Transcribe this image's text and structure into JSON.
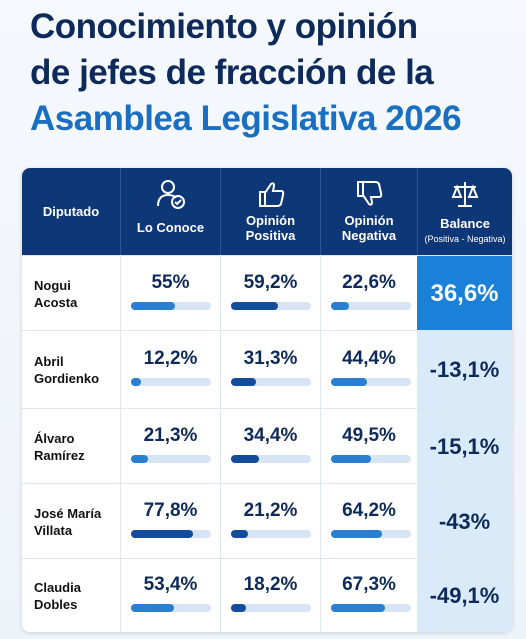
{
  "header": {
    "title": [
      "Conocimiento y opinión",
      "de jefes de fracción de la",
      "Asamblea Legislativa 2026"
    ]
  },
  "table": {
    "columns": [
      "Diputado",
      "Lo Conoce",
      "Opinión Positiva",
      "Opinión Negativa",
      "Balance"
    ],
    "balance_note": "(Positiva - Negativa)",
    "rows": [
      {
        "name": [
          "Nogui",
          "Acosta"
        ],
        "cells": [
          {
            "value": 55,
            "label": "55%"
          },
          {
            "value": 59.2,
            "label": "59,2%"
          },
          {
            "value": 22.6,
            "label": "22,6%"
          }
        ],
        "balance": "36,6%"
      },
      {
        "name": [
          "Abril",
          "Gordienko"
        ],
        "cells": [
          {
            "value": 12.2,
            "label": "12,2%"
          },
          {
            "value": 31.3,
            "label": "31,3%"
          },
          {
            "value": 44.4,
            "label": "44,4%"
          }
        ],
        "balance": "-13,1%"
      },
      {
        "name": [
          "Álvaro",
          "Ramírez"
        ],
        "cells": [
          {
            "value": 21.3,
            "label": "21,3%"
          },
          {
            "value": 34.4,
            "label": "34,4%"
          },
          {
            "value": 49.5,
            "label": "49,5%"
          }
        ],
        "balance": "-15,1%"
      },
      {
        "name": [
          "José María",
          "Villata"
        ],
        "cells": [
          {
            "value": 77.8,
            "label": "77,8%"
          },
          {
            "value": 21.2,
            "label": "21,2%"
          },
          {
            "value": 64.2,
            "label": "64,2%"
          }
        ],
        "balance": "-43%"
      },
      {
        "name": [
          "Claudia",
          "Dobles"
        ],
        "cells": [
          {
            "value": 53.4,
            "label": "53,4%"
          },
          {
            "value": 18.2,
            "label": "18,2%"
          },
          {
            "value": 67.3,
            "label": "67,3%"
          }
        ],
        "balance": "-49,1%"
      }
    ]
  }
}
